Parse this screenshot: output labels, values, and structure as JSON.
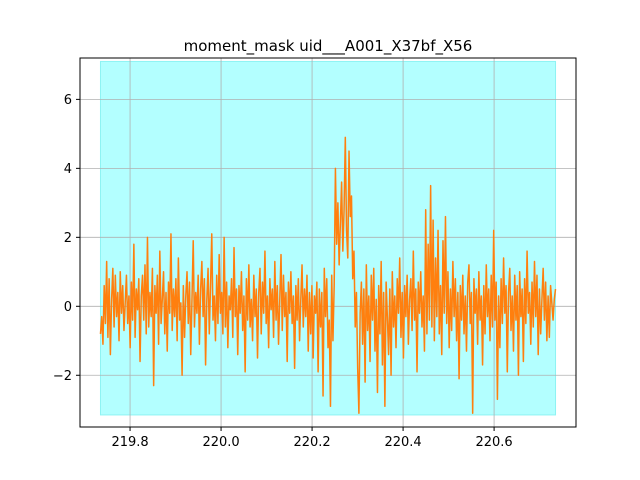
{
  "chart_data": {
    "type": "line",
    "title": "moment_mask uid___A001_X37bf_X56",
    "xlabel": "",
    "ylabel": "",
    "xlim": [
      219.69,
      220.78
    ],
    "ylim": [
      -3.5,
      7.2
    ],
    "x_ticks": [
      219.8,
      220.0,
      220.2,
      220.4,
      220.6
    ],
    "x_tick_labels": [
      "219.8",
      "220.0",
      "220.2",
      "220.4",
      "220.6"
    ],
    "y_ticks": [
      -2,
      0,
      2,
      4,
      6
    ],
    "y_tick_labels": [
      "−2",
      "0",
      "2",
      "4",
      "6"
    ],
    "grid": true,
    "mask_region": {
      "x": [
        219.735,
        220.735
      ],
      "y": [
        -3.15,
        7.1
      ],
      "color": "#b3ffff"
    },
    "series": [
      {
        "color": "#ff7f0e",
        "x_start": 219.735,
        "x_end": 220.735,
        "values": [
          -0.8,
          -0.3,
          -1.1,
          0.6,
          -0.5,
          1.3,
          -0.9,
          0.8,
          -1.4,
          0.2,
          1.1,
          -0.6,
          0.9,
          -0.3,
          0.4,
          -1.0,
          1.0,
          -0.2,
          0.6,
          -0.7,
          0.1,
          0.9,
          -0.5,
          0.3,
          -1.2,
          0.7,
          -0.4,
          1.8,
          -0.9,
          0.5,
          -0.1,
          0.8,
          -1.6,
          0.3,
          0.9,
          -0.4,
          1.2,
          -0.8,
          2.0,
          -0.6,
          0.4,
          -0.3,
          1.1,
          -2.3,
          0.6,
          -0.2,
          0.9,
          -1.1,
          1.6,
          -0.5,
          0.2,
          1.0,
          -0.8,
          0.4,
          -1.3,
          0.7,
          -0.2,
          2.1,
          -0.7,
          0.5,
          -0.3,
          0.8,
          -1.0,
          1.4,
          -0.4,
          0.1,
          -2.0,
          0.6,
          -0.9,
          0.3,
          1.0,
          -0.5,
          0.7,
          -1.4,
          0.2,
          1.9,
          -0.6,
          0.4,
          -0.2,
          0.9,
          -1.1,
          0.5,
          1.3,
          -0.3,
          0.8,
          -1.7,
          0.2,
          1.1,
          -0.8,
          0.6,
          2.1,
          -0.4,
          0.3,
          -1.0,
          0.9,
          -0.5,
          1.5,
          -0.2,
          0.4,
          -0.8,
          2.0,
          -0.6,
          0.7,
          -1.2,
          0.3,
          -0.1,
          0.8,
          -0.9,
          1.7,
          -0.3,
          0.5,
          -1.4,
          0.6,
          -0.2,
          1.0,
          -0.7,
          0.3,
          -1.9,
          0.8,
          -0.4,
          1.2,
          -0.6,
          0.2,
          -1.0,
          0.9,
          -0.3,
          0.5,
          -1.5,
          0.4,
          1.1,
          -0.8,
          0.7,
          -0.2,
          1.6,
          -0.5,
          0.3,
          -1.2,
          0.8,
          -0.1,
          0.5,
          -0.9,
          1.3,
          -0.4,
          0.6,
          -1.1,
          0.2,
          1.5,
          -0.7,
          0.9,
          -0.3,
          0.4,
          -1.6,
          0.7,
          -0.2,
          1.0,
          -0.5,
          0.3,
          -1.8,
          0.6,
          -0.4,
          0.8,
          -1.0,
          0.2,
          1.2,
          -0.6,
          0.5,
          -0.3,
          0.9,
          -1.3,
          0.4,
          -0.8,
          0.6,
          -1.5,
          0.3,
          -0.2,
          0.7,
          -1.9,
          0.5,
          -0.6,
          0.4,
          -2.6,
          1.1,
          -0.3,
          0.8,
          -1.2,
          -0.4,
          -2.9,
          0.9,
          -1.0,
          0.6,
          4.0,
          1.8,
          3.0,
          1.2,
          2.4,
          3.6,
          1.6,
          2.8,
          4.9,
          2.2,
          1.4,
          4.5,
          2.6,
          3.2,
          0.8,
          1.6,
          -0.6,
          0.4,
          -1.8,
          -3.1,
          -0.2,
          0.7,
          -1.1,
          0.5,
          -2.2,
          1.2,
          -0.7,
          0.3,
          -1.6,
          0.9,
          -0.4,
          1.1,
          -1.3,
          0.2,
          -2.5,
          0.6,
          -0.8,
          1.3,
          -1.7,
          0.4,
          -2.9,
          0.7,
          -0.3,
          -1.4,
          0.5,
          -2.0,
          1.0,
          -0.6,
          0.3,
          -1.2,
          0.8,
          -0.2,
          1.4,
          -0.9,
          0.4,
          -1.5,
          0.6,
          -0.3,
          0.9,
          -1.1,
          0.2,
          0.8,
          -0.7,
          1.6,
          -0.4,
          0.5,
          -1.9,
          0.7,
          -0.2,
          1.0,
          -0.6,
          0.3,
          -1.3,
          2.8,
          -0.8,
          1.8,
          -0.4,
          3.5,
          -0.6,
          2.5,
          -1.0,
          1.4,
          -0.3,
          2.2,
          -0.8,
          0.6,
          -1.4,
          1.9,
          -0.2,
          2.6,
          -0.5,
          1.0,
          -1.2,
          0.5,
          -0.7,
          1.3,
          -0.3,
          0.8,
          -1.0,
          0.4,
          -2.1,
          0.6,
          -0.4,
          0.9,
          -0.8,
          0.3,
          -1.3,
          0.7,
          1.2,
          -0.5,
          0.4,
          -3.1,
          0.8,
          -0.2,
          0.5,
          -1.1,
          1.0,
          -0.4,
          0.3,
          -1.7,
          0.6,
          -0.8,
          1.2,
          -0.3,
          0.5,
          -1.0,
          0.9,
          -0.6,
          2.2,
          -0.4,
          0.7,
          -2.7,
          0.3,
          -1.2,
          0.8,
          -0.5,
          1.4,
          -0.2,
          0.6,
          -1.9,
          0.4,
          1.1,
          -0.7,
          0.3,
          -1.3,
          0.9,
          -0.4,
          0.6,
          -2.0,
          1.0,
          -0.3,
          0.5,
          -1.6,
          0.8,
          -0.5,
          1.6,
          -0.2,
          0.4,
          -1.1,
          0.7,
          -0.6,
          1.3,
          -0.3,
          0.9,
          -1.4,
          0.5,
          -0.8,
          0.2,
          1.1,
          -0.4,
          0.7,
          -1.0,
          0.3,
          -0.9,
          0.6,
          0.1,
          -0.4,
          0.2,
          0.5
        ]
      }
    ]
  }
}
